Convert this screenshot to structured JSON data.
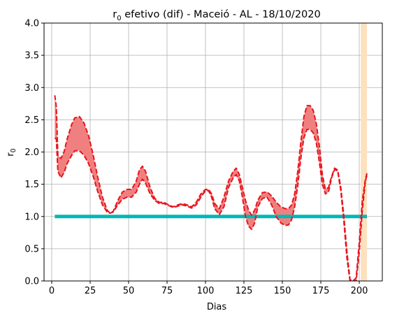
{
  "chart_data": {
    "type": "line",
    "title_prefix": "r",
    "title_sub": "0",
    "title_rest": " efetivo (dif) - Maceió - AL - 18/10/2020",
    "xlabel": "Dias",
    "ylabel_main": "r",
    "ylabel_sub": "0",
    "xlim": [
      -5,
      215
    ],
    "ylim": [
      0,
      4
    ],
    "xticks": [
      0,
      25,
      50,
      75,
      100,
      125,
      150,
      175,
      200
    ],
    "yticks": [
      0.0,
      0.5,
      1.0,
      1.5,
      2.0,
      2.5,
      3.0,
      3.5,
      4.0
    ],
    "xtick_labels": [
      "0",
      "25",
      "50",
      "75",
      "100",
      "125",
      "150",
      "175",
      "200"
    ],
    "ytick_labels": [
      "0.0",
      "0.5",
      "1.0",
      "1.5",
      "2.0",
      "2.5",
      "3.0",
      "3.5",
      "4.0"
    ],
    "grid": true,
    "highlight_band": {
      "x0": 201,
      "x1": 205,
      "color": "#fde1be"
    },
    "reference_line": {
      "y": 1.0,
      "x0": 2,
      "x1": 205,
      "color": "#00b8b8"
    },
    "band_fill_color": "#f08080",
    "line_color": "#e8141c",
    "x": [
      2,
      3,
      4,
      6,
      8,
      10,
      13,
      15,
      18,
      21,
      24,
      27,
      30,
      33,
      36,
      38,
      40,
      43,
      46,
      49,
      52,
      55,
      57,
      59,
      61,
      64,
      67,
      70,
      73,
      76,
      79,
      82,
      85,
      88,
      91,
      94,
      97,
      100,
      102,
      104,
      106,
      109,
      112,
      115,
      118,
      120,
      122,
      124,
      126,
      128,
      130,
      132,
      134,
      137,
      140,
      143,
      146,
      149,
      152,
      154,
      156,
      158,
      160,
      162,
      164,
      166,
      168,
      170,
      172,
      174,
      176,
      178,
      180,
      182,
      184,
      186,
      188,
      190,
      192,
      194,
      196,
      198,
      200,
      202,
      204,
      205
    ],
    "upper": [
      2.88,
      2.7,
      1.95,
      1.9,
      2.0,
      2.2,
      2.43,
      2.53,
      2.55,
      2.45,
      2.25,
      1.95,
      1.6,
      1.3,
      1.1,
      1.05,
      1.08,
      1.25,
      1.38,
      1.42,
      1.42,
      1.55,
      1.72,
      1.78,
      1.7,
      1.45,
      1.28,
      1.22,
      1.22,
      1.18,
      1.15,
      1.18,
      1.2,
      1.18,
      1.15,
      1.22,
      1.35,
      1.42,
      1.42,
      1.35,
      1.2,
      1.12,
      1.3,
      1.55,
      1.7,
      1.75,
      1.65,
      1.45,
      1.25,
      1.1,
      1.02,
      1.1,
      1.25,
      1.37,
      1.38,
      1.32,
      1.22,
      1.15,
      1.12,
      1.12,
      1.18,
      1.35,
      1.7,
      2.15,
      2.55,
      2.72,
      2.72,
      2.65,
      2.45,
      2.1,
      1.65,
      1.42,
      1.45,
      1.62,
      1.75,
      1.72,
      1.45,
      1.0,
      0.45,
      0.02,
      0.0,
      0.05,
      0.6,
      1.25,
      1.58,
      1.67
    ],
    "lower": [
      2.22,
      2.2,
      1.7,
      1.6,
      1.68,
      1.82,
      1.95,
      2.02,
      2.02,
      1.95,
      1.82,
      1.62,
      1.38,
      1.18,
      1.07,
      1.05,
      1.07,
      1.18,
      1.27,
      1.3,
      1.3,
      1.38,
      1.5,
      1.58,
      1.52,
      1.35,
      1.25,
      1.2,
      1.2,
      1.17,
      1.14,
      1.16,
      1.18,
      1.16,
      1.13,
      1.18,
      1.3,
      1.4,
      1.4,
      1.3,
      1.12,
      1.03,
      1.15,
      1.45,
      1.6,
      1.65,
      1.55,
      1.3,
      1.0,
      0.85,
      0.8,
      0.9,
      1.15,
      1.28,
      1.3,
      1.18,
      1.0,
      0.9,
      0.86,
      0.87,
      0.95,
      1.15,
      1.48,
      1.9,
      2.22,
      2.35,
      2.35,
      2.3,
      2.15,
      1.85,
      1.5,
      1.35,
      1.38,
      1.6,
      1.73,
      1.7,
      1.4,
      0.92,
      0.35,
      0.0,
      0.0,
      0.0,
      0.45,
      1.1,
      1.55,
      1.64
    ]
  }
}
